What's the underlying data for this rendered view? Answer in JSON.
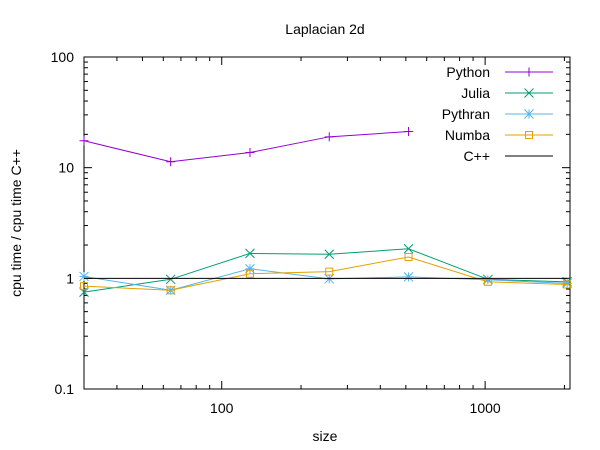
{
  "chart_data": {
    "type": "line",
    "title": "Laplacian 2d",
    "xlabel": "size",
    "ylabel": "cpu time / cpu time C++",
    "x_scale": "log",
    "y_scale": "log",
    "xlim": [
      30,
      2100
    ],
    "ylim": [
      0.1,
      100
    ],
    "x_ticks": [
      {
        "value": 100,
        "label": "100"
      },
      {
        "value": 1000,
        "label": "1000"
      }
    ],
    "y_ticks": [
      {
        "value": 0.1,
        "label": "0.1"
      },
      {
        "value": 1,
        "label": "1"
      },
      {
        "value": 10,
        "label": "10"
      },
      {
        "value": 100,
        "label": "100"
      }
    ],
    "grid": false,
    "legend_position": "top-right",
    "series": [
      {
        "name": "Python",
        "color": "#9400d3",
        "marker": "plus",
        "x": [
          30,
          64,
          128,
          256,
          512
        ],
        "y": [
          17.5,
          11.3,
          13.7,
          19.0,
          21.2
        ]
      },
      {
        "name": "Julia",
        "color": "#009e73",
        "marker": "cross",
        "x": [
          30,
          64,
          128,
          256,
          512,
          1024,
          2048
        ],
        "y": [
          0.75,
          0.98,
          1.68,
          1.65,
          1.85,
          0.98,
          0.93
        ]
      },
      {
        "name": "Pythran",
        "color": "#56b4e9",
        "marker": "star",
        "x": [
          30,
          64,
          128,
          256,
          512,
          1024,
          2048
        ],
        "y": [
          1.04,
          0.78,
          1.22,
          0.99,
          1.03,
          0.97,
          0.9
        ]
      },
      {
        "name": "Numba",
        "color": "#e69f00",
        "marker": "square",
        "x": [
          30,
          64,
          128,
          256,
          512,
          1024,
          2048
        ],
        "y": [
          0.85,
          0.78,
          1.1,
          1.15,
          1.56,
          0.93,
          0.88
        ]
      },
      {
        "name": "C++",
        "color": "#000000",
        "marker": "none",
        "x": [
          30,
          2048
        ],
        "y": [
          1.0,
          1.0
        ]
      }
    ]
  }
}
